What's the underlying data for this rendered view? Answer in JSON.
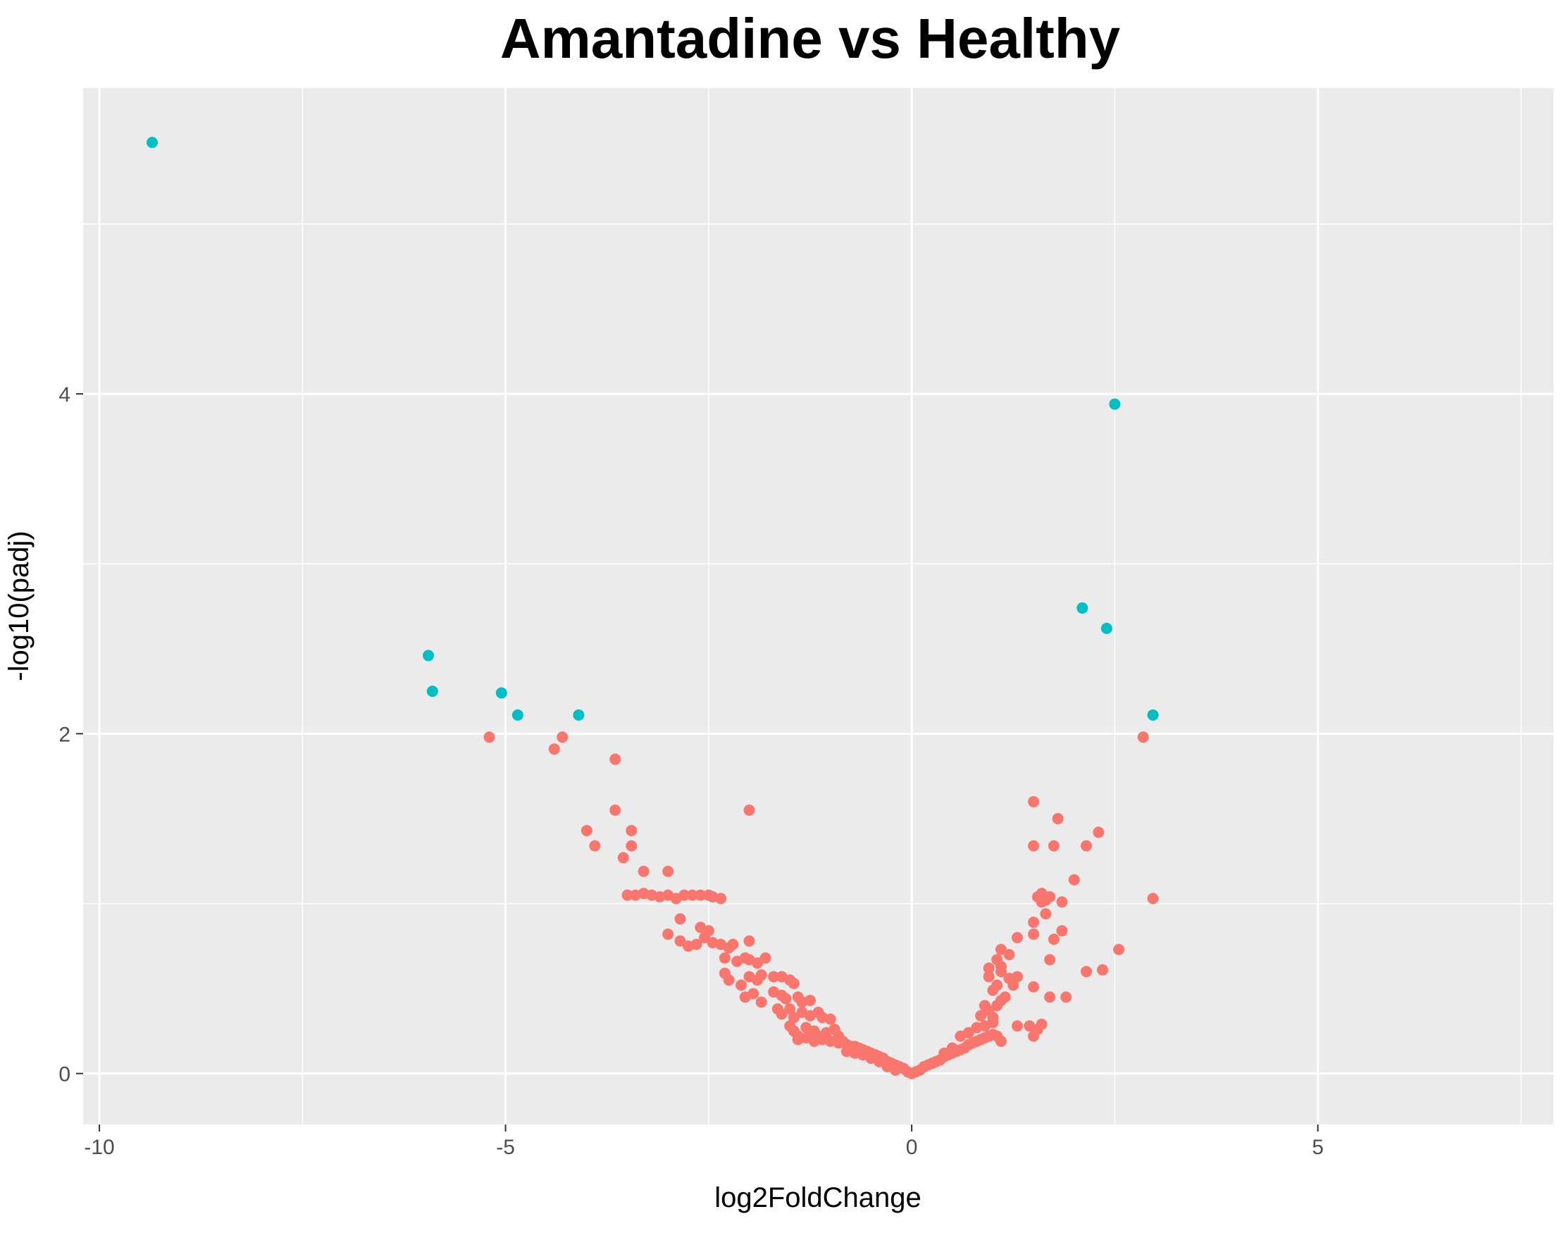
{
  "chart_data": {
    "type": "scatter",
    "title": "Amantadine vs Healthy",
    "xlabel": "log2FoldChange",
    "ylabel": "-log10(padj)",
    "xlim": [
      -10.2,
      7.9
    ],
    "ylim": [
      -0.3,
      5.8
    ],
    "x_ticks": [
      -10,
      -5,
      0,
      5
    ],
    "x_tick_labels": [
      "-10",
      "-5",
      "0",
      "5"
    ],
    "y_ticks": [
      0,
      2,
      4
    ],
    "y_tick_labels": [
      "0",
      "2",
      "4"
    ],
    "grid": true,
    "legend": "none",
    "colors": {
      "panel_background": "#ebebeb",
      "grid": "#ffffff",
      "significant": "#00bfc4",
      "not_significant": "#f8766d"
    },
    "series": [
      {
        "color": "#00bfc4",
        "points": [
          [
            -9.35,
            5.48
          ],
          [
            -5.95,
            2.46
          ],
          [
            -5.9,
            2.25
          ],
          [
            -5.05,
            2.24
          ],
          [
            -4.85,
            2.11
          ],
          [
            -4.1,
            2.11
          ],
          [
            2.1,
            2.74
          ],
          [
            2.4,
            2.62
          ],
          [
            2.5,
            3.94
          ],
          [
            2.97,
            2.11
          ]
        ]
      },
      {
        "color": "#f8766d",
        "points": [
          [
            -5.2,
            1.98
          ],
          [
            -4.3,
            1.98
          ],
          [
            -4.4,
            1.91
          ],
          [
            -3.65,
            1.85
          ],
          [
            -3.65,
            1.55
          ],
          [
            -2.0,
            1.55
          ],
          [
            -4.0,
            1.43
          ],
          [
            -3.45,
            1.43
          ],
          [
            -3.9,
            1.34
          ],
          [
            -3.45,
            1.34
          ],
          [
            -3.55,
            1.27
          ],
          [
            -3.3,
            1.19
          ],
          [
            -3.0,
            1.19
          ],
          [
            -3.5,
            1.05
          ],
          [
            -3.4,
            1.05
          ],
          [
            -3.3,
            1.06
          ],
          [
            -3.2,
            1.05
          ],
          [
            -3.1,
            1.04
          ],
          [
            -3.0,
            1.05
          ],
          [
            -2.9,
            1.03
          ],
          [
            -2.8,
            1.05
          ],
          [
            -2.7,
            1.05
          ],
          [
            -2.6,
            1.05
          ],
          [
            -2.5,
            1.05
          ],
          [
            -2.45,
            1.04
          ],
          [
            -2.35,
            1.03
          ],
          [
            -2.85,
            0.91
          ],
          [
            -2.6,
            0.86
          ],
          [
            -2.5,
            0.84
          ],
          [
            -3.0,
            0.82
          ],
          [
            -2.85,
            0.78
          ],
          [
            -2.75,
            0.75
          ],
          [
            -2.65,
            0.76
          ],
          [
            -2.55,
            0.8
          ],
          [
            -2.45,
            0.77
          ],
          [
            -2.35,
            0.76
          ],
          [
            -2.25,
            0.74
          ],
          [
            -2.2,
            0.76
          ],
          [
            -2.0,
            0.78
          ],
          [
            -2.3,
            0.68
          ],
          [
            -2.15,
            0.66
          ],
          [
            -2.05,
            0.68
          ],
          [
            -2.0,
            0.67
          ],
          [
            -1.9,
            0.65
          ],
          [
            -1.8,
            0.68
          ],
          [
            -2.3,
            0.59
          ],
          [
            -2.25,
            0.55
          ],
          [
            -2.1,
            0.52
          ],
          [
            -2.0,
            0.57
          ],
          [
            -1.9,
            0.55
          ],
          [
            -1.85,
            0.58
          ],
          [
            -1.7,
            0.57
          ],
          [
            -1.6,
            0.57
          ],
          [
            -1.5,
            0.55
          ],
          [
            -1.45,
            0.53
          ],
          [
            -2.05,
            0.45
          ],
          [
            -1.95,
            0.47
          ],
          [
            -1.85,
            0.42
          ],
          [
            -1.7,
            0.48
          ],
          [
            -1.6,
            0.46
          ],
          [
            -1.55,
            0.44
          ],
          [
            -1.4,
            0.45
          ],
          [
            -1.35,
            0.42
          ],
          [
            -1.25,
            0.43
          ],
          [
            -1.65,
            0.38
          ],
          [
            -1.6,
            0.35
          ],
          [
            -1.5,
            0.38
          ],
          [
            -1.45,
            0.33
          ],
          [
            -1.35,
            0.36
          ],
          [
            -1.25,
            0.34
          ],
          [
            -1.15,
            0.36
          ],
          [
            -1.1,
            0.33
          ],
          [
            -1.0,
            0.32
          ],
          [
            -1.5,
            0.28
          ],
          [
            -1.45,
            0.25
          ],
          [
            -1.4,
            0.22
          ],
          [
            -1.3,
            0.27
          ],
          [
            -1.2,
            0.25
          ],
          [
            -1.15,
            0.22
          ],
          [
            -1.05,
            0.24
          ],
          [
            -0.95,
            0.26
          ],
          [
            -0.9,
            0.22
          ],
          [
            -1.4,
            0.2
          ],
          [
            -1.3,
            0.21
          ],
          [
            -1.2,
            0.19
          ],
          [
            -1.1,
            0.2
          ],
          [
            -1.0,
            0.19
          ],
          [
            -0.9,
            0.18
          ],
          [
            -0.85,
            0.19
          ],
          [
            -0.8,
            0.17
          ],
          [
            -0.75,
            0.16
          ],
          [
            -0.7,
            0.16
          ],
          [
            -0.65,
            0.15
          ],
          [
            -0.6,
            0.14
          ],
          [
            -0.55,
            0.13
          ],
          [
            -0.5,
            0.12
          ],
          [
            -0.45,
            0.11
          ],
          [
            -0.4,
            0.1
          ],
          [
            -0.35,
            0.09
          ],
          [
            -0.3,
            0.07
          ],
          [
            -0.25,
            0.06
          ],
          [
            -0.2,
            0.05
          ],
          [
            -0.15,
            0.04
          ],
          [
            -0.1,
            0.03
          ],
          [
            -0.05,
            0.01
          ],
          [
            -0.8,
            0.13
          ],
          [
            -0.7,
            0.12
          ],
          [
            -0.6,
            0.11
          ],
          [
            -0.5,
            0.09
          ],
          [
            -0.4,
            0.07
          ],
          [
            -0.3,
            0.04
          ],
          [
            -0.2,
            0.02
          ],
          [
            0.0,
            0.0
          ],
          [
            0.05,
            0.01
          ],
          [
            0.1,
            0.02
          ],
          [
            0.15,
            0.04
          ],
          [
            0.2,
            0.05
          ],
          [
            0.25,
            0.06
          ],
          [
            0.3,
            0.07
          ],
          [
            0.35,
            0.08
          ],
          [
            0.4,
            0.1
          ],
          [
            0.45,
            0.11
          ],
          [
            0.5,
            0.12
          ],
          [
            0.55,
            0.13
          ],
          [
            0.6,
            0.14
          ],
          [
            0.65,
            0.15
          ],
          [
            0.7,
            0.17
          ],
          [
            0.75,
            0.18
          ],
          [
            0.8,
            0.19
          ],
          [
            0.85,
            0.2
          ],
          [
            0.9,
            0.21
          ],
          [
            0.95,
            0.22
          ],
          [
            1.0,
            0.23
          ],
          [
            1.05,
            0.22
          ],
          [
            1.1,
            0.19
          ],
          [
            0.6,
            0.22
          ],
          [
            0.7,
            0.24
          ],
          [
            0.8,
            0.27
          ],
          [
            0.9,
            0.28
          ],
          [
            1.0,
            0.3
          ],
          [
            0.5,
            0.15
          ],
          [
            0.4,
            0.12
          ],
          [
            0.85,
            0.34
          ],
          [
            0.95,
            0.37
          ],
          [
            1.05,
            0.4
          ],
          [
            1.1,
            0.43
          ],
          [
            1.15,
            0.45
          ],
          [
            1.0,
            0.33
          ],
          [
            0.9,
            0.4
          ],
          [
            1.0,
            0.49
          ],
          [
            1.05,
            0.52
          ],
          [
            0.95,
            0.57
          ],
          [
            1.1,
            0.6
          ],
          [
            1.2,
            0.56
          ],
          [
            1.25,
            0.52
          ],
          [
            1.3,
            0.57
          ],
          [
            0.95,
            0.62
          ],
          [
            1.1,
            0.63
          ],
          [
            1.05,
            0.67
          ],
          [
            1.1,
            0.73
          ],
          [
            1.2,
            0.7
          ],
          [
            1.3,
            0.8
          ],
          [
            1.5,
            0.82
          ],
          [
            1.5,
            0.89
          ],
          [
            1.65,
            0.94
          ],
          [
            1.6,
            1.01
          ],
          [
            1.55,
            1.04
          ],
          [
            1.6,
            1.06
          ],
          [
            1.7,
            1.04
          ],
          [
            1.65,
            1.02
          ],
          [
            1.85,
            1.01
          ],
          [
            1.85,
            0.84
          ],
          [
            1.75,
            0.79
          ],
          [
            1.7,
            0.67
          ],
          [
            2.0,
            1.14
          ],
          [
            2.15,
            0.6
          ],
          [
            2.35,
            0.61
          ],
          [
            2.55,
            0.73
          ],
          [
            1.5,
            0.51
          ],
          [
            1.7,
            0.45
          ],
          [
            1.9,
            0.45
          ],
          [
            1.3,
            0.28
          ],
          [
            1.45,
            0.28
          ],
          [
            1.55,
            0.26
          ],
          [
            1.6,
            0.29
          ],
          [
            1.5,
            0.22
          ],
          [
            1.5,
            1.6
          ],
          [
            1.8,
            1.5
          ],
          [
            2.3,
            1.42
          ],
          [
            1.5,
            1.34
          ],
          [
            1.75,
            1.34
          ],
          [
            2.15,
            1.34
          ],
          [
            2.85,
            1.98
          ],
          [
            2.97,
            1.03
          ]
        ]
      }
    ]
  }
}
